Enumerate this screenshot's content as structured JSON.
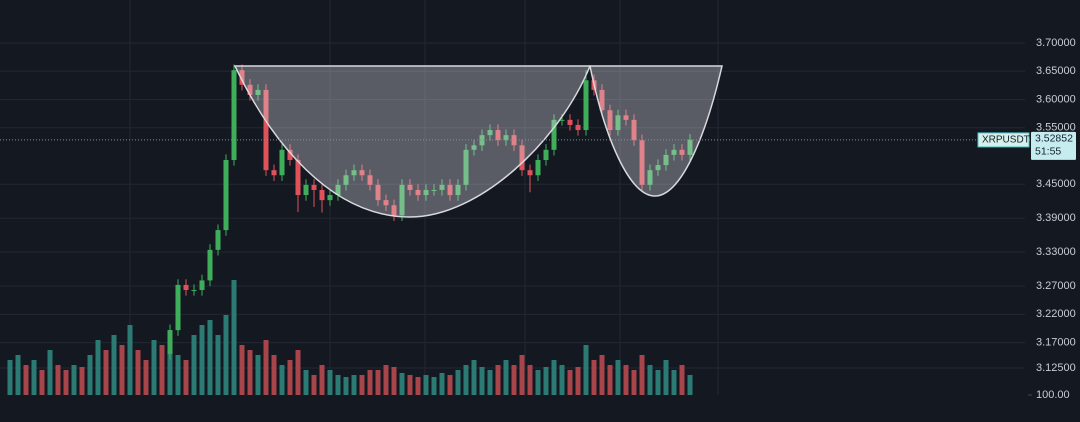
{
  "chart_data": {
    "type": "candlestick",
    "symbol": "XRPUSDT",
    "last_price": 3.52852,
    "countdown": "51:55",
    "ylim": [
      3.072,
      3.776
    ],
    "yticks": [
      {
        "value": 3.7,
        "label": "3.70000"
      },
      {
        "value": 3.65,
        "label": "3.65000"
      },
      {
        "value": 3.6,
        "label": "3.60000"
      },
      {
        "value": 3.55,
        "label": "3.55000"
      },
      {
        "value": 3.45,
        "label": "3.45000"
      },
      {
        "value": 3.39,
        "label": "3.39000"
      },
      {
        "value": 3.33,
        "label": "3.33000"
      },
      {
        "value": 3.27,
        "label": "3.27000"
      },
      {
        "value": 3.22,
        "label": "3.22000"
      },
      {
        "value": 3.17,
        "label": "3.17000"
      },
      {
        "value": 3.125,
        "label": "3.12500"
      }
    ],
    "volume_ylim": [
      100,
      1000
    ],
    "volume_yticks": [
      {
        "value": 100,
        "label": "100.00"
      }
    ],
    "up_color": "#3fae5a",
    "down_color": "#e0525a",
    "volume_up_color": "#2b7a74",
    "volume_down_color": "#a8454a",
    "open": [
      null,
      null,
      null,
      null,
      null,
      null,
      null,
      null,
      null,
      null,
      null,
      null,
      null,
      null,
      null,
      null,
      null,
      null,
      null,
      null,
      3.15,
      3.192,
      3.272,
      3.263,
      3.263,
      3.28,
      3.334,
      3.369,
      3.493,
      3.652,
      3.626,
      3.608,
      3.617,
      3.475,
      3.466,
      3.511,
      3.493,
      3.431,
      3.449,
      3.44,
      3.422,
      3.431,
      3.449,
      3.466,
      3.475,
      3.466,
      3.449,
      3.422,
      3.413,
      3.395,
      3.449,
      3.44,
      3.431,
      3.44,
      3.44,
      3.449,
      3.431,
      3.449,
      3.511,
      3.519,
      3.537,
      3.546,
      3.528,
      3.537,
      3.519,
      3.475,
      3.466,
      3.493,
      3.511,
      3.564,
      3.564,
      3.555,
      3.546,
      3.634,
      3.617,
      3.581,
      3.546,
      3.572,
      3.564,
      3.528,
      3.449,
      3.475,
      3.484,
      3.502,
      3.511,
      3.502
    ],
    "high": [
      null,
      null,
      null,
      null,
      null,
      null,
      null,
      null,
      null,
      null,
      null,
      null,
      null,
      null,
      null,
      null,
      null,
      null,
      null,
      null,
      3.202,
      3.282,
      3.282,
      3.273,
      3.29,
      3.344,
      3.379,
      3.503,
      3.662,
      3.662,
      3.636,
      3.627,
      3.627,
      3.485,
      3.521,
      3.521,
      3.503,
      3.459,
      3.459,
      3.45,
      3.441,
      3.459,
      3.476,
      3.485,
      3.485,
      3.476,
      3.459,
      3.432,
      3.423,
      3.459,
      3.459,
      3.45,
      3.45,
      3.45,
      3.459,
      3.459,
      3.459,
      3.521,
      3.529,
      3.547,
      3.556,
      3.556,
      3.547,
      3.547,
      3.529,
      3.485,
      3.503,
      3.521,
      3.574,
      3.574,
      3.574,
      3.565,
      3.652,
      3.644,
      3.627,
      3.591,
      3.582,
      3.582,
      3.574,
      3.538,
      3.485,
      3.494,
      3.512,
      3.521,
      3.521,
      3.539
    ],
    "low": [
      null,
      null,
      null,
      null,
      null,
      null,
      null,
      null,
      null,
      null,
      null,
      null,
      null,
      null,
      null,
      null,
      null,
      null,
      null,
      null,
      3.14,
      3.182,
      3.253,
      3.253,
      3.253,
      3.27,
      3.324,
      3.359,
      3.483,
      3.616,
      3.598,
      3.598,
      3.465,
      3.456,
      3.456,
      3.483,
      3.401,
      3.421,
      3.41,
      3.4,
      3.412,
      3.421,
      3.439,
      3.456,
      3.456,
      3.439,
      3.412,
      3.403,
      3.385,
      3.385,
      3.43,
      3.421,
      3.421,
      3.43,
      3.43,
      3.421,
      3.421,
      3.439,
      3.501,
      3.509,
      3.527,
      3.518,
      3.518,
      3.509,
      3.465,
      3.436,
      3.456,
      3.483,
      3.501,
      3.554,
      3.545,
      3.536,
      3.536,
      3.607,
      3.571,
      3.536,
      3.536,
      3.554,
      3.518,
      3.439,
      3.439,
      3.465,
      3.474,
      3.492,
      3.492,
      3.492
    ],
    "close": [
      null,
      null,
      null,
      null,
      null,
      null,
      null,
      null,
      null,
      null,
      null,
      null,
      null,
      null,
      null,
      null,
      null,
      null,
      null,
      null,
      3.192,
      3.272,
      3.263,
      3.263,
      3.28,
      3.334,
      3.369,
      3.493,
      3.652,
      3.626,
      3.608,
      3.617,
      3.475,
      3.466,
      3.511,
      3.493,
      3.431,
      3.449,
      3.44,
      3.422,
      3.431,
      3.449,
      3.466,
      3.475,
      3.466,
      3.449,
      3.422,
      3.413,
      3.395,
      3.449,
      3.44,
      3.431,
      3.44,
      3.44,
      3.449,
      3.431,
      3.449,
      3.511,
      3.519,
      3.537,
      3.546,
      3.528,
      3.537,
      3.519,
      3.475,
      3.466,
      3.493,
      3.511,
      3.564,
      3.564,
      3.555,
      3.546,
      3.634,
      3.617,
      3.581,
      3.546,
      3.572,
      3.564,
      3.528,
      3.449,
      3.475,
      3.484,
      3.502,
      3.511,
      3.502,
      3.529
    ],
    "volume": [
      310,
      340,
      280,
      310,
      250,
      370,
      280,
      250,
      280,
      268,
      340,
      430,
      370,
      460,
      400,
      520,
      370,
      310,
      430,
      400,
      490,
      340,
      310,
      460,
      520,
      550,
      460,
      580,
      790,
      400,
      370,
      340,
      430,
      340,
      280,
      310,
      370,
      250,
      220,
      280,
      250,
      220,
      208,
      220,
      220,
      250,
      250,
      280,
      268,
      232,
      220,
      208,
      220,
      208,
      232,
      220,
      250,
      280,
      310,
      268,
      250,
      280,
      310,
      280,
      340,
      280,
      250,
      268,
      310,
      280,
      250,
      268,
      400,
      310,
      340,
      280,
      310,
      280,
      250,
      340,
      280,
      250,
      310,
      250,
      280,
      220
    ]
  }
}
